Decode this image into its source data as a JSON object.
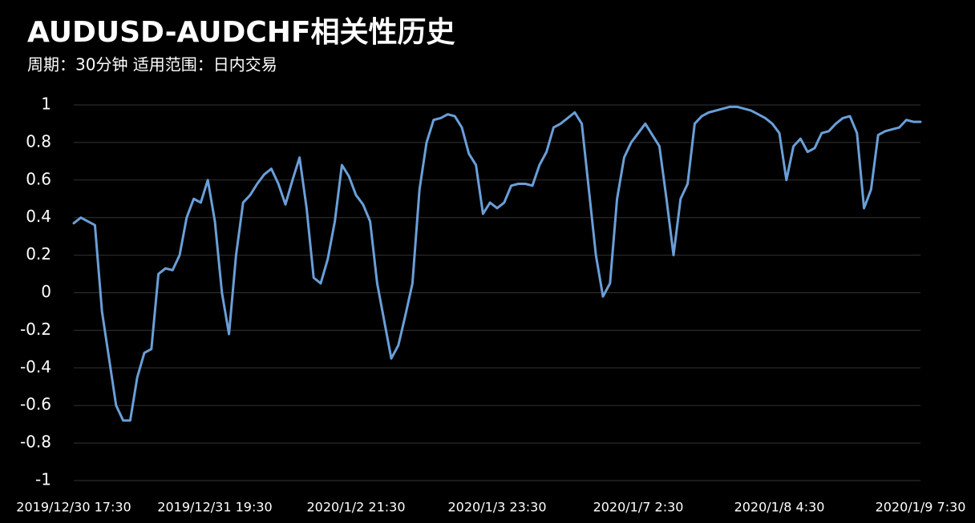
{
  "chart_data": {
    "type": "line",
    "title": "AUDUSD-AUDCHF相关性历史",
    "subtitle": "周期：30分钟 适用范围：日内交易",
    "categories": [
      "2019/12/30 17:30",
      null,
      null,
      null,
      null,
      null,
      null,
      null,
      null,
      null,
      null,
      null,
      null,
      null,
      null,
      null,
      null,
      null,
      null,
      null,
      "2019/12/31 19:30",
      null,
      null,
      null,
      null,
      null,
      null,
      null,
      null,
      null,
      null,
      null,
      null,
      null,
      null,
      null,
      null,
      null,
      null,
      null,
      "2020/1/2 21:30",
      null,
      null,
      null,
      null,
      null,
      null,
      null,
      null,
      null,
      null,
      null,
      null,
      null,
      null,
      null,
      null,
      null,
      null,
      null,
      "2020/1/3 23:30",
      null,
      null,
      null,
      null,
      null,
      null,
      null,
      null,
      null,
      null,
      null,
      null,
      null,
      null,
      null,
      null,
      null,
      null,
      null,
      "2020/1/7 2:30",
      null,
      null,
      null,
      null,
      null,
      null,
      null,
      null,
      null,
      null,
      null,
      null,
      null,
      null,
      null,
      null,
      null,
      null,
      null,
      "2020/1/8 4:30",
      null,
      null,
      null,
      null,
      null,
      null,
      null,
      null,
      null,
      null,
      null,
      null,
      null,
      null,
      null,
      null,
      null,
      null,
      null,
      "2020/1/9 7:30"
    ],
    "values": [
      0.37,
      0.4,
      0.38,
      0.36,
      -0.1,
      -0.35,
      -0.6,
      -0.68,
      -0.68,
      -0.45,
      -0.32,
      -0.3,
      0.1,
      0.13,
      0.12,
      0.2,
      0.4,
      0.5,
      0.48,
      0.6,
      0.38,
      0.0,
      -0.22,
      0.2,
      0.48,
      0.52,
      0.58,
      0.63,
      0.66,
      0.58,
      0.47,
      0.6,
      0.72,
      0.45,
      0.08,
      0.05,
      0.18,
      0.38,
      0.68,
      0.62,
      0.52,
      0.47,
      0.38,
      0.05,
      -0.15,
      -0.35,
      -0.28,
      -0.12,
      0.05,
      0.55,
      0.8,
      0.92,
      0.93,
      0.95,
      0.94,
      0.88,
      0.74,
      0.68,
      0.42,
      0.48,
      0.45,
      0.48,
      0.57,
      0.58,
      0.58,
      0.57,
      0.68,
      0.75,
      0.88,
      0.9,
      0.93,
      0.96,
      0.9,
      0.55,
      0.2,
      -0.02,
      0.05,
      0.5,
      0.72,
      0.8,
      0.85,
      0.9,
      0.84,
      0.78,
      0.5,
      0.2,
      0.5,
      0.58,
      0.9,
      0.94,
      0.96,
      0.97,
      0.98,
      0.99,
      0.99,
      0.98,
      0.97,
      0.95,
      0.93,
      0.9,
      0.85,
      0.6,
      0.78,
      0.82,
      0.75,
      0.77,
      0.85,
      0.86,
      0.9,
      0.93,
      0.94,
      0.85,
      0.45,
      0.55,
      0.84,
      0.86,
      0.87,
      0.88,
      0.92,
      0.91,
      0.91
    ],
    "color": "#6a9fd8",
    "ylim": [
      -1,
      1
    ],
    "yticks": [
      1,
      0.8,
      0.6,
      0.4,
      0.2,
      0,
      -0.2,
      -0.4,
      -0.6,
      -0.8,
      -1
    ],
    "grid": true
  }
}
